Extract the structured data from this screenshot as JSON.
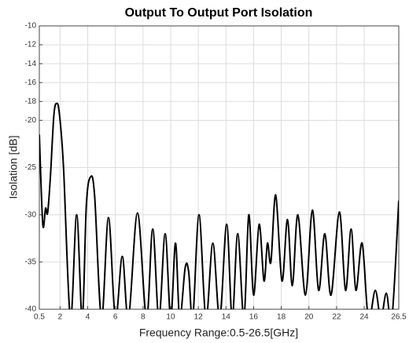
{
  "chart_data": {
    "type": "line",
    "title": "Output To Output Port Isolation",
    "xlabel": "Frequency Range:0.5-26.5[GHz]",
    "ylabel": "Isolation [dB]",
    "x": [
      0.5,
      0.75,
      0.95,
      1.1,
      1.3,
      1.55,
      1.75,
      1.95,
      2.25,
      2.75,
      3.2,
      3.6,
      3.9,
      4.2,
      4.5,
      5.0,
      5.5,
      6.0,
      6.5,
      6.95,
      7.6,
      8.25,
      8.7,
      9.15,
      9.6,
      10.0,
      10.35,
      10.65,
      11.05,
      11.3,
      11.6,
      12.05,
      12.55,
      13.05,
      13.55,
      14.05,
      14.45,
      14.85,
      15.3,
      15.65,
      16.0,
      16.4,
      16.75,
      17.0,
      17.25,
      17.6,
      18.05,
      18.45,
      18.8,
      19.2,
      19.75,
      20.25,
      20.7,
      21.15,
      21.6,
      22.2,
      22.65,
      23.05,
      23.4,
      23.85,
      24.3,
      24.8,
      25.2,
      25.6,
      26.0,
      26.5
    ],
    "values": [
      -21.5,
      -31,
      -29.3,
      -29.8,
      -26,
      -19.5,
      -18.2,
      -19.3,
      -25,
      -41,
      -30,
      -41,
      -29,
      -26,
      -28,
      -41,
      -30.3,
      -41,
      -34.4,
      -41,
      -29.8,
      -41,
      -31.5,
      -41,
      -32,
      -41,
      -33,
      -41,
      -35.6,
      -36,
      -41,
      -30,
      -41,
      -33,
      -41,
      -31,
      -41,
      -32,
      -41,
      -30,
      -38.5,
      -31,
      -37,
      -33,
      -35,
      -27.9,
      -37,
      -30.5,
      -37.5,
      -30,
      -38.5,
      -29.5,
      -38,
      -32,
      -38.5,
      -29.7,
      -38,
      -31.5,
      -38,
      -33,
      -41,
      -38,
      -41,
      -38.3,
      -41,
      -28.5
    ],
    "color": "#000000",
    "xlim": [
      0.5,
      26.5
    ],
    "xticks": [
      0.5,
      2,
      4,
      6,
      8,
      10,
      12,
      14,
      16,
      18,
      20,
      22,
      24,
      26.5
    ],
    "ylim": [
      -40,
      -10
    ],
    "yticks": [
      -10,
      -12,
      -14,
      -16,
      -18,
      -20,
      -25,
      -30,
      -35,
      -40
    ],
    "grid": true
  }
}
